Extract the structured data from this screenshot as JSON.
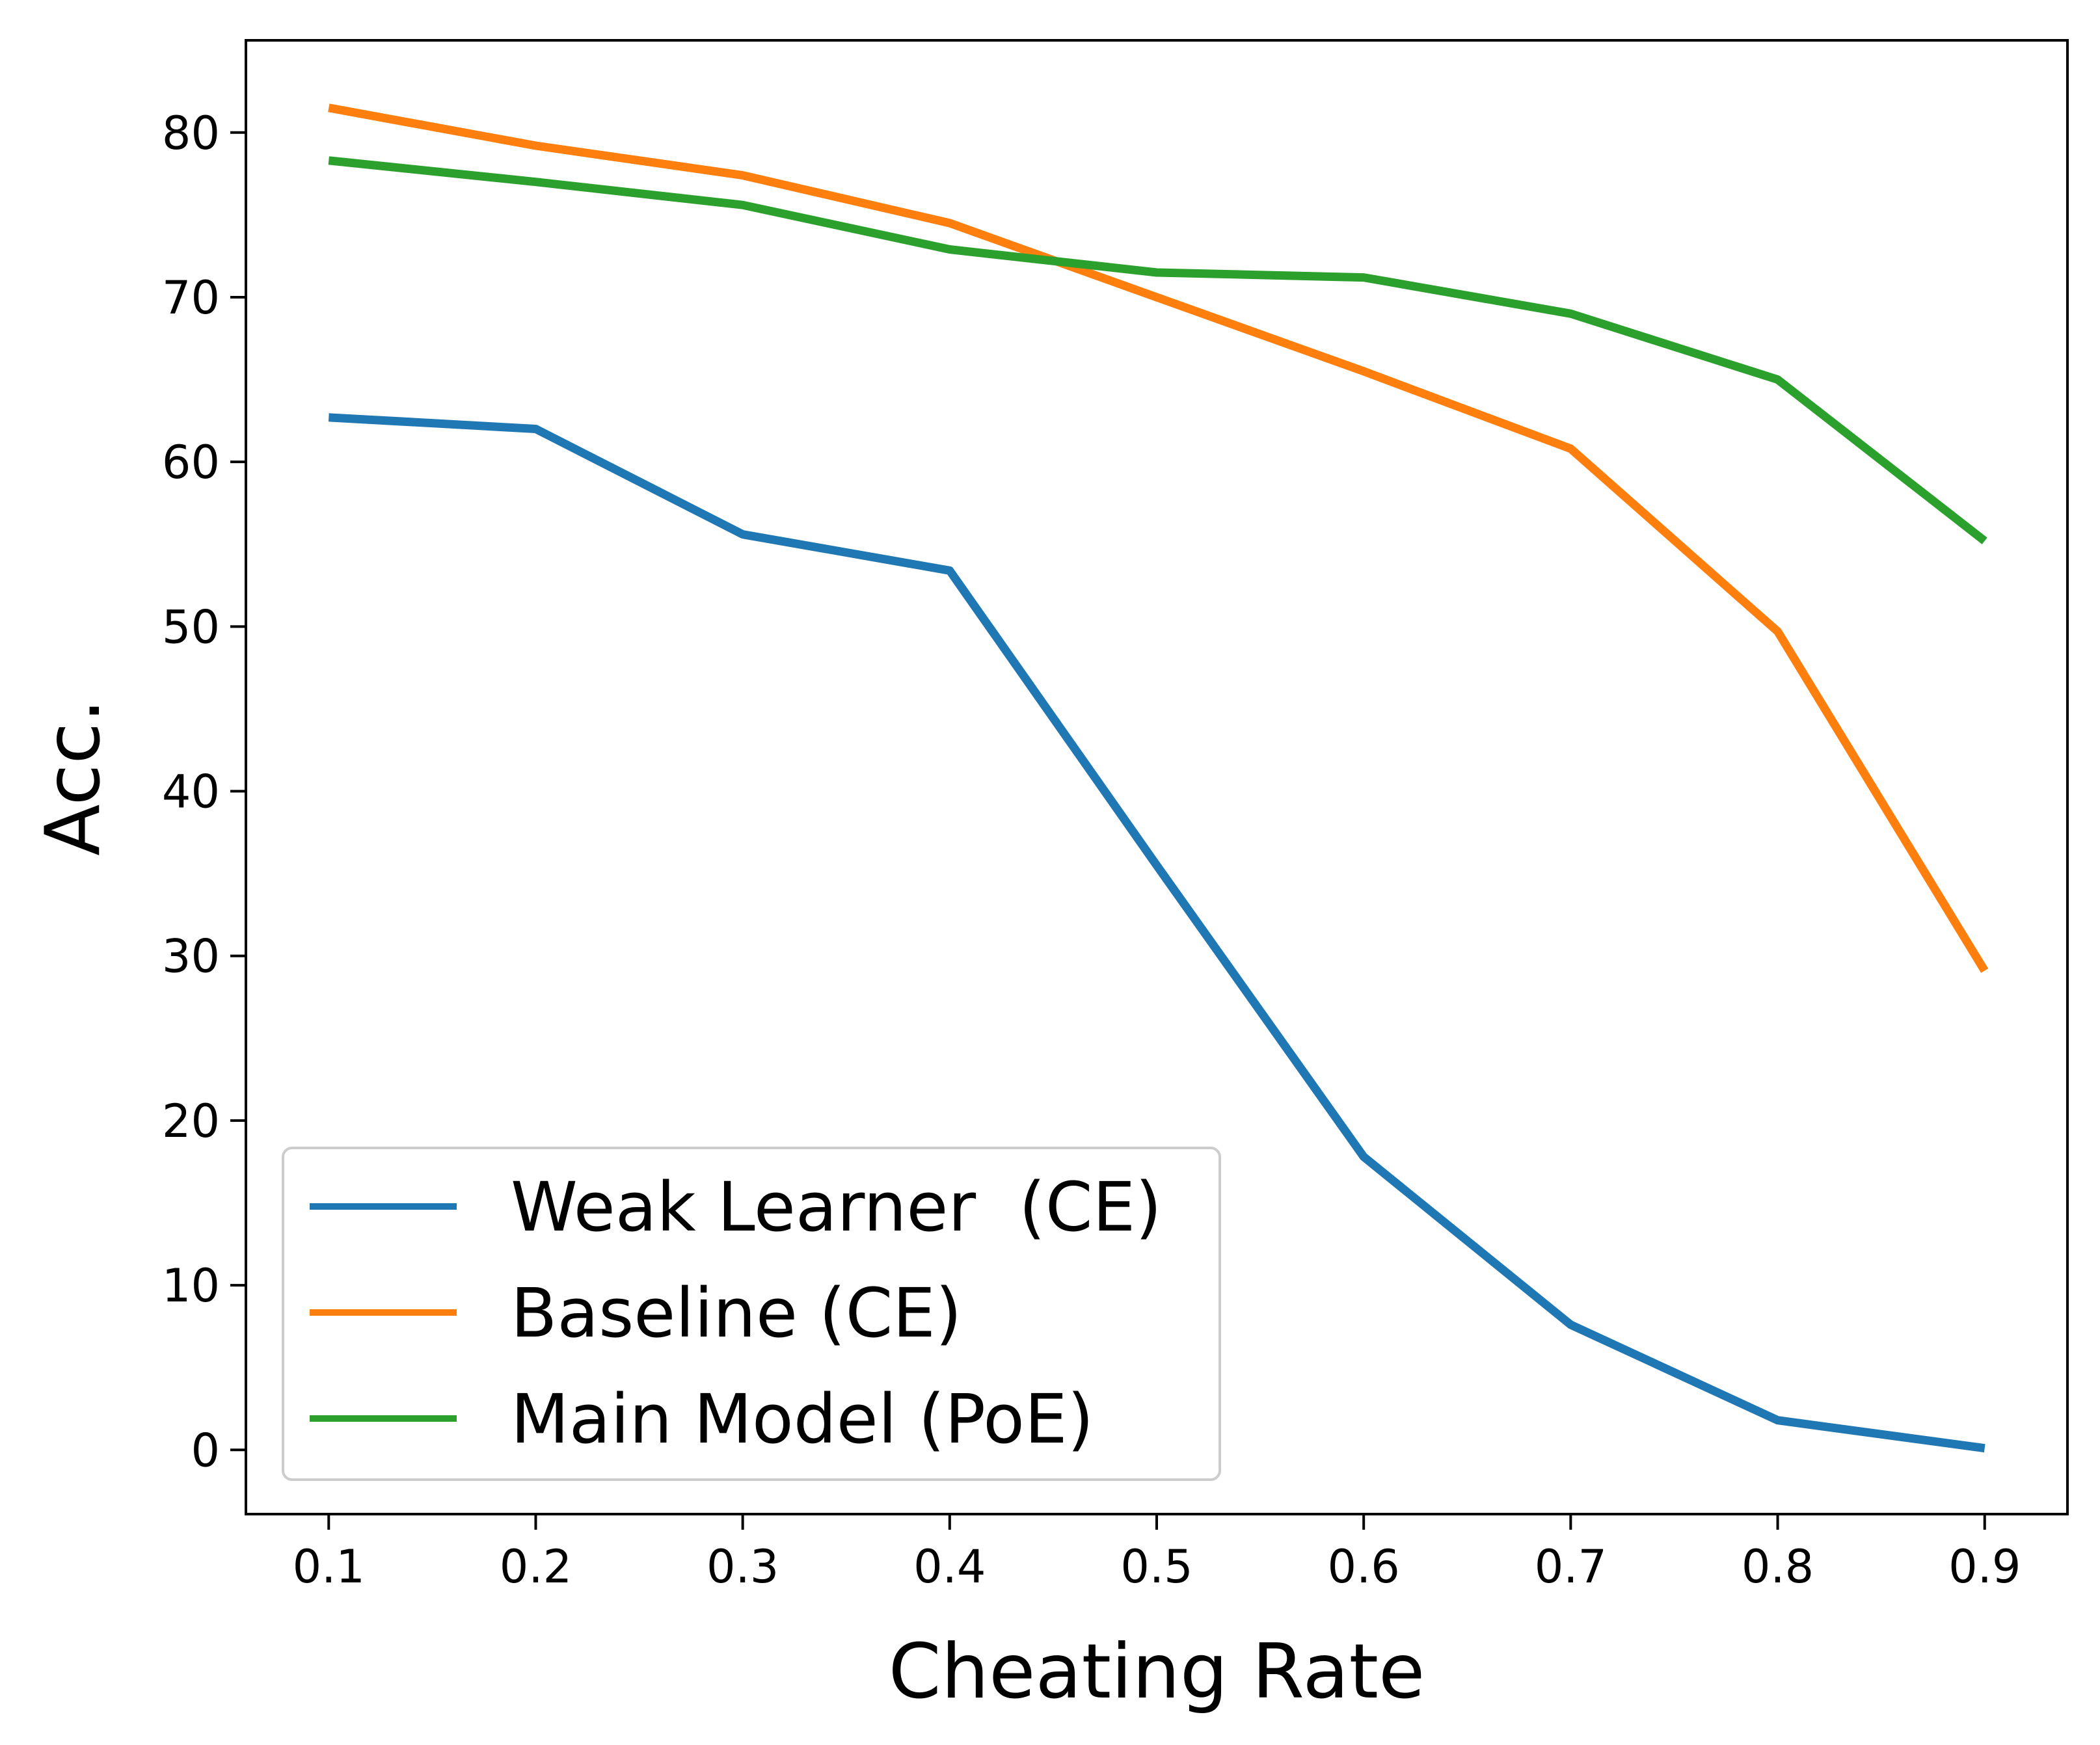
{
  "chart_data": {
    "type": "line",
    "xlabel": "Cheating Rate",
    "ylabel": "Acc.",
    "x": [
      0.1,
      0.2,
      0.3,
      0.4,
      0.5,
      0.6,
      0.7,
      0.8,
      0.9
    ],
    "x_tick_labels": [
      "0.1",
      "0.2",
      "0.3",
      "0.4",
      "0.5",
      "0.6",
      "0.7",
      "0.8",
      "0.9"
    ],
    "y_ticks": [
      0,
      10,
      20,
      30,
      40,
      50,
      60,
      70,
      80
    ],
    "y_tick_labels": [
      "0",
      "10",
      "20",
      "30",
      "40",
      "50",
      "60",
      "70",
      "80"
    ],
    "xlim": [
      0.06,
      0.94
    ],
    "ylim": [
      -3.9,
      85.6
    ],
    "grid": false,
    "legend_position": "lower-left",
    "series": [
      {
        "name": "Weak Learner  (CE)",
        "color": "#1f77b4",
        "values": [
          62.7,
          62.0,
          55.6,
          53.4,
          35.5,
          17.8,
          7.6,
          1.8,
          0.1
        ]
      },
      {
        "name": "Baseline (CE)",
        "color": "#ff7f0e",
        "values": [
          81.5,
          79.2,
          77.4,
          74.5,
          70.0,
          65.5,
          60.8,
          49.7,
          29.1
        ]
      },
      {
        "name": "Main Model (PoE)",
        "color": "#2ca02c",
        "values": [
          78.3,
          77.0,
          75.6,
          72.9,
          71.5,
          71.2,
          69.0,
          65.0,
          55.2
        ]
      }
    ]
  }
}
